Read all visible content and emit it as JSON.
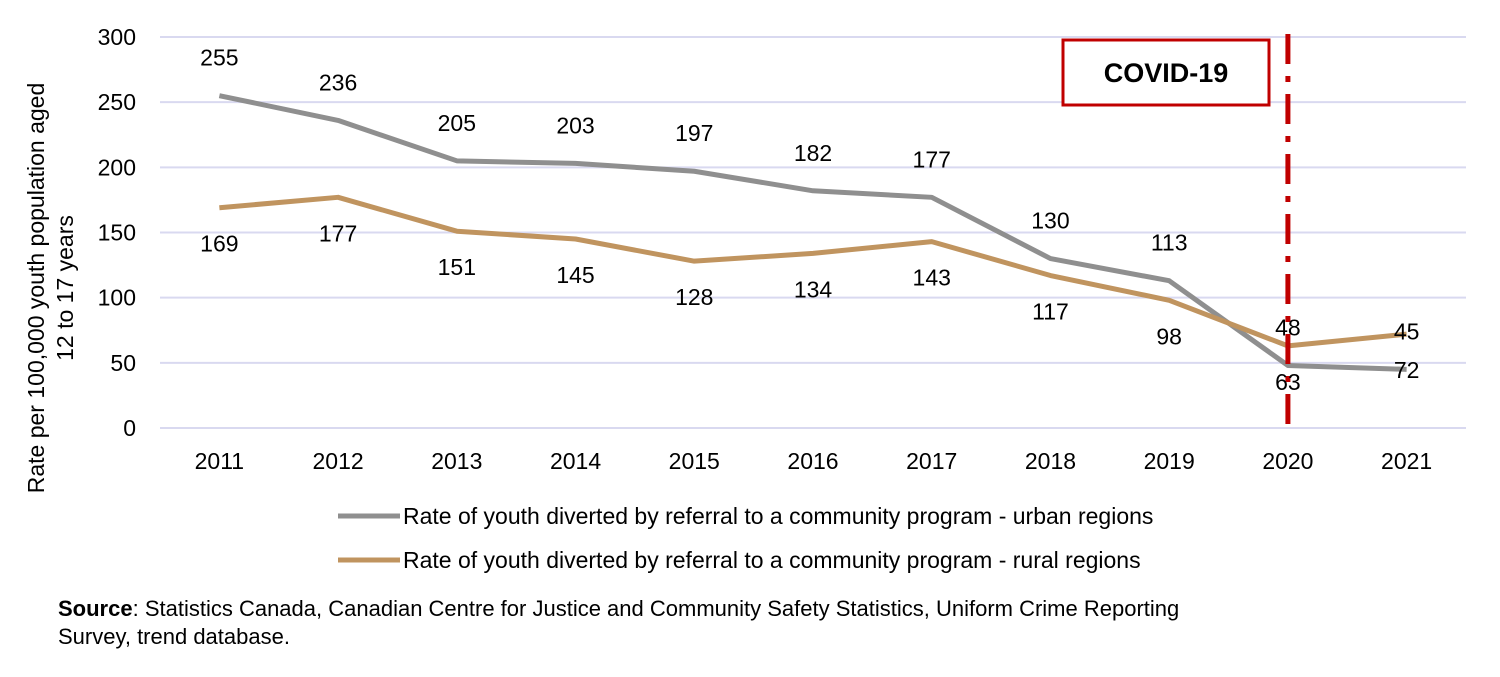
{
  "chart_data": {
    "type": "line",
    "categories": [
      "2011",
      "2012",
      "2013",
      "2014",
      "2015",
      "2016",
      "2017",
      "2018",
      "2019",
      "2020",
      "2021"
    ],
    "series": [
      {
        "name": "Rate of youth diverted by referral to a community program - urban regions",
        "color": "#8f8f8f",
        "values": [
          255,
          236,
          205,
          203,
          197,
          182,
          177,
          130,
          113,
          48,
          45
        ]
      },
      {
        "name": "Rate of youth diverted by referral to a community program - rural regions",
        "color": "#c0945f",
        "values": [
          169,
          177,
          151,
          145,
          128,
          134,
          143,
          117,
          98,
          63,
          72
        ]
      }
    ],
    "ylabel": [
      "Rate per 100,000 youth population aged",
      "12 to 17 years"
    ],
    "xlabel": "",
    "ylim": [
      0,
      300
    ],
    "yticks": [
      0,
      50,
      100,
      150,
      200,
      250,
      300
    ],
    "grid": true,
    "gridColor": "#d9d9f0",
    "legend": "bottom",
    "annotation": {
      "label": "COVID-19",
      "at": "2020",
      "color": "#c00000"
    }
  },
  "source": {
    "label": "Source",
    "text": ": Statistics Canada, Canadian Centre for Justice and Community Safety Statistics, Uniform Crime Reporting",
    "text2": "Survey, trend database."
  }
}
